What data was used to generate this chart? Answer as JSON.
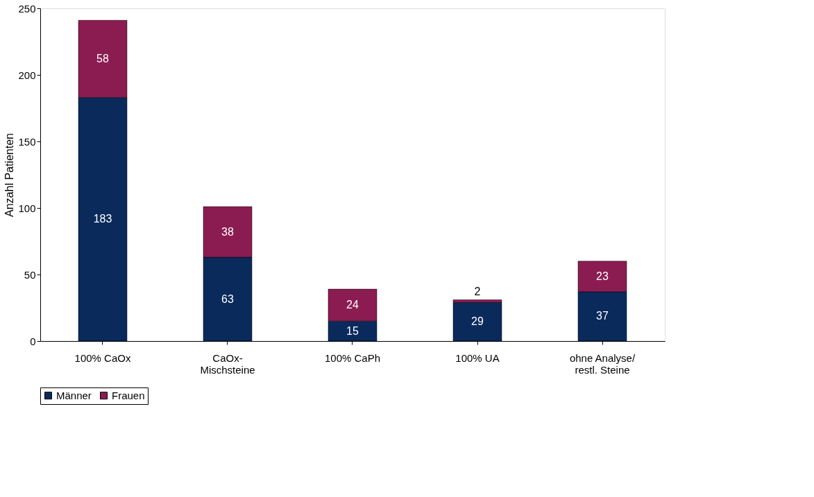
{
  "chart_data": {
    "type": "bar",
    "stacked": true,
    "ylabel": "Anzahl Patienten",
    "categories": [
      "100% CaOx",
      "CaOx-Mischsteine",
      "100% CaPh",
      "100% UA",
      "ohne Analyse/restl. Steine"
    ],
    "series": [
      {
        "name": "Männer",
        "color": "#0a2a5c",
        "values": [
          183,
          63,
          15,
          29,
          37
        ]
      },
      {
        "name": "Frauen",
        "color": "#8b1c52",
        "values": [
          58,
          38,
          24,
          2,
          23
        ]
      }
    ],
    "ylim": [
      0,
      250
    ],
    "yticks": [
      0,
      50,
      100,
      150,
      200,
      250
    ],
    "grid": false,
    "legend": "bottom",
    "data_labels": true
  }
}
